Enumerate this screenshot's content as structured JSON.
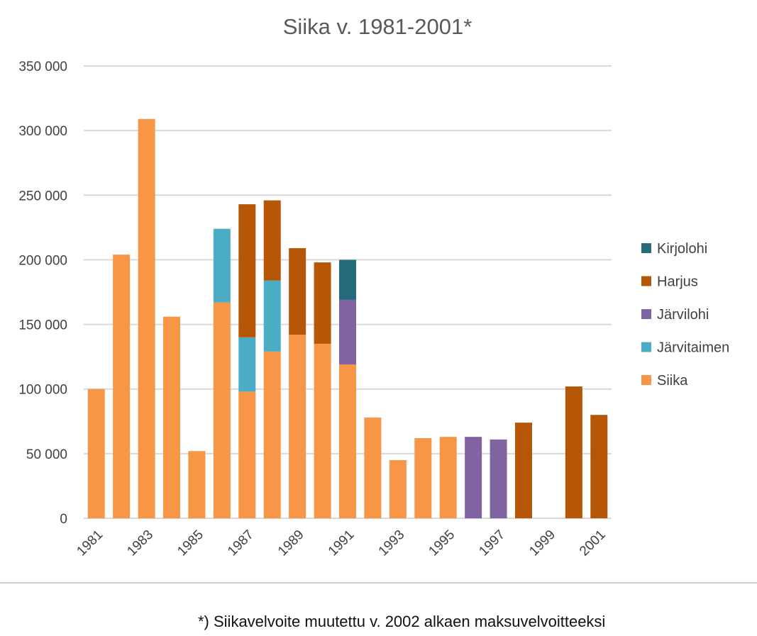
{
  "chart_data": {
    "type": "bar",
    "stacked": true,
    "title": "Siika v. 1981-2001*",
    "xlabel": "",
    "ylabel": "",
    "ylim": [
      0,
      350000
    ],
    "y_ticks": [
      0,
      50000,
      100000,
      150000,
      200000,
      250000,
      300000,
      350000
    ],
    "y_tick_labels": [
      "0",
      "50 000",
      "100 000",
      "150 000",
      "200 000",
      "250 000",
      "300 000",
      "350 000"
    ],
    "grid": true,
    "legend_position": "right",
    "categories": [
      "1981",
      "1982",
      "1983",
      "1984",
      "1985",
      "1986",
      "1987",
      "1988",
      "1989",
      "1990",
      "1991",
      "1992",
      "1993",
      "1994",
      "1995",
      "1996",
      "1997",
      "1998",
      "1999",
      "2000",
      "2001"
    ],
    "x_tick_labels": [
      "1981",
      "1983",
      "1985",
      "1987",
      "1989",
      "1991",
      "1993",
      "1995",
      "1997",
      "1999",
      "2001"
    ],
    "series": [
      {
        "name": "Siika",
        "color": "#F79646",
        "values": [
          100000,
          204000,
          309000,
          156000,
          52000,
          167000,
          98000,
          129000,
          142000,
          135000,
          119000,
          78000,
          45000,
          62000,
          63000,
          0,
          0,
          0,
          0,
          0,
          0
        ]
      },
      {
        "name": "Järvitaimen",
        "color": "#4BACC6",
        "values": [
          0,
          0,
          0,
          0,
          0,
          57000,
          42000,
          55000,
          0,
          0,
          0,
          0,
          0,
          0,
          0,
          0,
          0,
          0,
          0,
          0,
          0
        ]
      },
      {
        "name": "Järvilohi",
        "color": "#8064A2",
        "values": [
          0,
          0,
          0,
          0,
          0,
          0,
          0,
          0,
          0,
          0,
          50000,
          0,
          0,
          0,
          0,
          63000,
          61000,
          0,
          0,
          0,
          0
        ]
      },
      {
        "name": "Harjus",
        "color": "#B65708",
        "values": [
          0,
          0,
          0,
          0,
          0,
          0,
          103000,
          62000,
          67000,
          63000,
          0,
          0,
          0,
          0,
          0,
          0,
          0,
          74000,
          0,
          102000,
          80000
        ]
      },
      {
        "name": "Kirjolohi",
        "color": "#276A7C",
        "values": [
          0,
          0,
          0,
          0,
          0,
          0,
          0,
          0,
          0,
          0,
          31000,
          0,
          0,
          0,
          0,
          0,
          0,
          0,
          0,
          0,
          0
        ]
      }
    ],
    "legend_order": [
      "Kirjolohi",
      "Harjus",
      "Järvilohi",
      "Järvitaimen",
      "Siika"
    ],
    "gridline_color": "#D9D9D9"
  },
  "footnote": "*) Siikavelvoite muutettu v. 2002 alkaen maksuvelvoitteeksi"
}
